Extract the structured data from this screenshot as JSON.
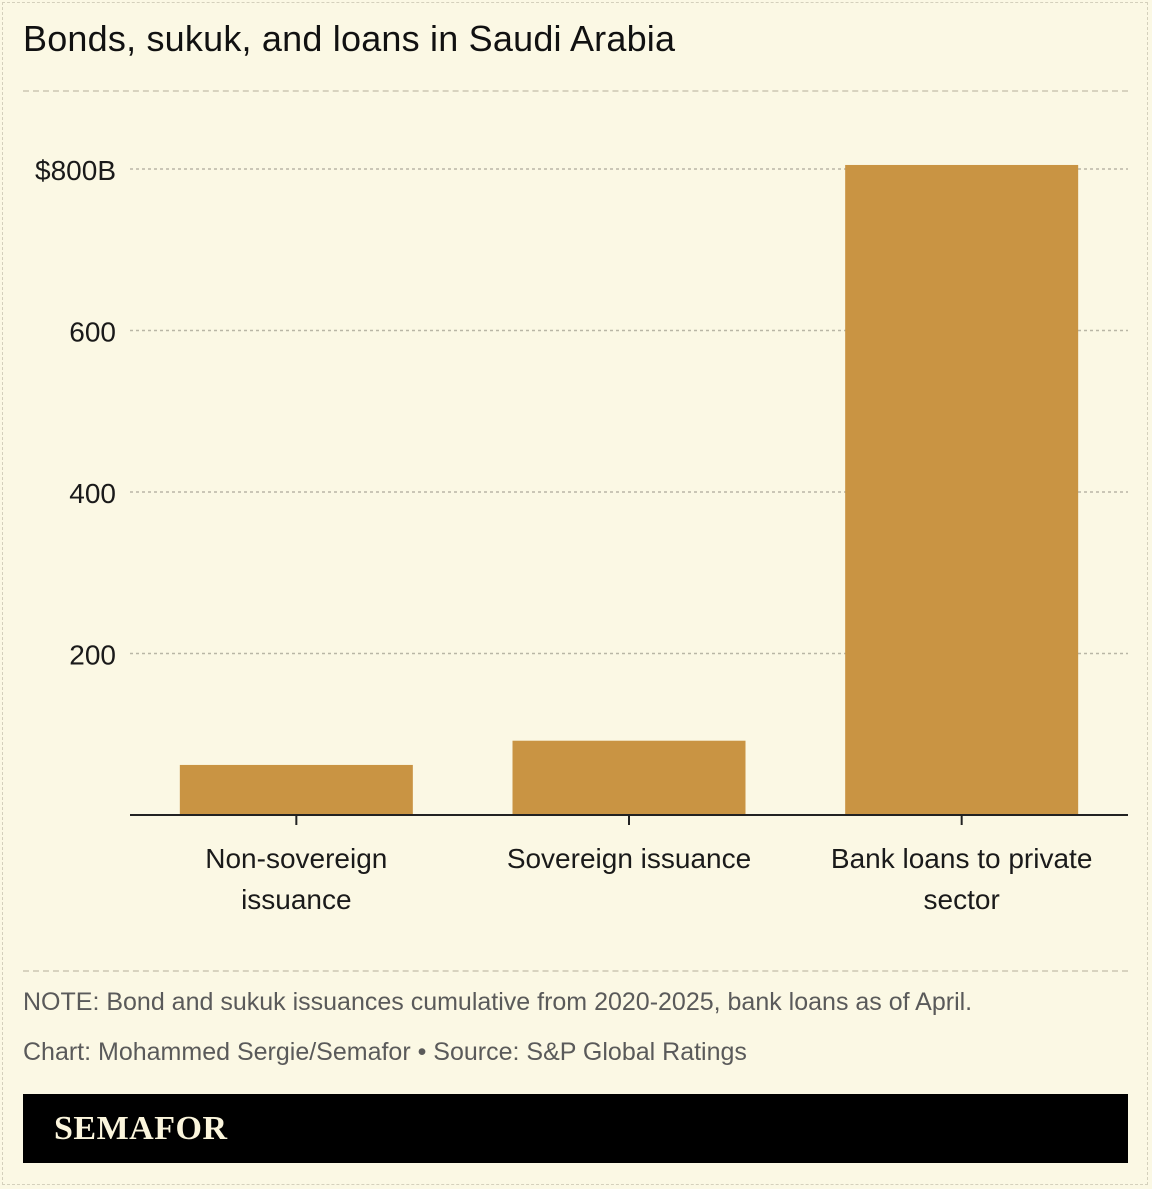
{
  "title": "Bonds, sukuk, and loans in Saudi Arabia",
  "note": "NOTE: Bond and sukuk issuances cumulative from 2020-2025, bank loans as of April.",
  "credit": "Chart: Mohammed Sergie/Semafor • Source: S&P Global Ratings",
  "brand": "SEMAFOR",
  "colors": {
    "bar": "#c99443",
    "background": "#fbf8e4",
    "grid": "#b9b6a6",
    "axis": "#222222",
    "brand_bar": "#000000",
    "brand_text": "#fbf5dc"
  },
  "chart_data": {
    "type": "bar",
    "categories": [
      [
        "Non-sovereign",
        "issuance"
      ],
      [
        "Sovereign issuance"
      ],
      [
        "Bank loans to private",
        "sector"
      ]
    ],
    "values": [
      62,
      92,
      805
    ],
    "ylim": [
      0,
      800
    ],
    "yticks": [
      200,
      400,
      600,
      800
    ],
    "ytick_labels": [
      "200",
      "400",
      "600",
      "$800B"
    ],
    "grid": true
  }
}
